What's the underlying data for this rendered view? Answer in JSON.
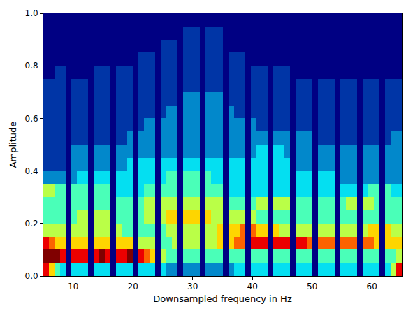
{
  "chart_data": {
    "type": "heatmap",
    "x_label": "Downsampled frequency in Hz",
    "y_label": "Amplitude",
    "color": "jet",
    "xlim": [
      5,
      65
    ],
    "ylim": [
      0,
      1
    ],
    "xticks": [
      10,
      20,
      30,
      40,
      50,
      60
    ],
    "yticks": [
      {
        "value": 0,
        "label": "0.0"
      },
      {
        "value": 0.2,
        "label": "0.2"
      },
      {
        "value": 0.4,
        "label": "0.4"
      },
      {
        "value": 0.6,
        "label": "0.6"
      },
      {
        "value": 0.8,
        "label": "0.8"
      },
      {
        "value": 1,
        "label": "1.0"
      }
    ],
    "x": [
      5.469,
      6.406,
      7.344,
      8.281,
      9.219,
      10.156,
      11.094,
      12.031,
      12.969,
      13.906,
      14.844,
      15.781,
      16.719,
      17.656,
      18.594,
      19.531,
      20.469,
      21.406,
      22.344,
      23.281,
      24.219,
      25.156,
      26.094,
      27.031,
      27.969,
      28.906,
      29.844,
      30.781,
      31.719,
      32.656,
      33.594,
      34.531,
      35.469,
      36.406,
      37.344,
      38.281,
      39.219,
      40.156,
      41.094,
      42.031,
      42.969,
      43.906,
      44.844,
      45.781,
      46.719,
      47.656,
      48.594,
      49.531,
      50.469,
      51.406,
      52.344,
      53.281,
      54.219,
      55.156,
      56.094,
      57.031,
      57.969,
      58.906,
      59.844,
      60.781,
      61.719,
      62.656,
      63.594,
      64.531
    ],
    "y": [
      0.025,
      0.075,
      0.125,
      0.175,
      0.225,
      0.275,
      0.325,
      0.375,
      0.425,
      0.475,
      0.525,
      0.575,
      0.625,
      0.675,
      0.725,
      0.775,
      0.825,
      0.875,
      0.925,
      0.975
    ],
    "z": [
      [
        8,
        6,
        4,
        3,
        0,
        3,
        3,
        3,
        0,
        3,
        3,
        3,
        0,
        3,
        3,
        3,
        0,
        3,
        3,
        3,
        0,
        3,
        2,
        2,
        0,
        2,
        2,
        2,
        0,
        2,
        2,
        2,
        0,
        2,
        3,
        3,
        0,
        3,
        3,
        3,
        0,
        3,
        3,
        3,
        0,
        3,
        3,
        3,
        0,
        3,
        3,
        3,
        0,
        3,
        3,
        3,
        0,
        3,
        3,
        3,
        0,
        3,
        5,
        8
      ],
      [
        9,
        9,
        9,
        8,
        0,
        8,
        8,
        8,
        0,
        8,
        9,
        8,
        0,
        8,
        8,
        9,
        0,
        8,
        7,
        6,
        0,
        5,
        4,
        4,
        0,
        4,
        4,
        4,
        0,
        4,
        4,
        4,
        0,
        4,
        4,
        4,
        0,
        4,
        4,
        4,
        0,
        4,
        4,
        4,
        0,
        4,
        4,
        4,
        0,
        4,
        4,
        4,
        0,
        4,
        4,
        4,
        0,
        4,
        4,
        4,
        0,
        4,
        4,
        5
      ],
      [
        8,
        7,
        6,
        6,
        0,
        6,
        6,
        6,
        0,
        6,
        6,
        6,
        0,
        6,
        6,
        6,
        0,
        5,
        5,
        5,
        0,
        4,
        4,
        5,
        0,
        5,
        5,
        5,
        0,
        5,
        5,
        6,
        0,
        6,
        7,
        7,
        0,
        8,
        8,
        8,
        0,
        8,
        8,
        8,
        0,
        8,
        8,
        7,
        0,
        7,
        7,
        7,
        0,
        7,
        7,
        7,
        0,
        7,
        7,
        6,
        0,
        6,
        6,
        6
      ],
      [
        5,
        5,
        5,
        5,
        0,
        5,
        5,
        5,
        0,
        5,
        5,
        5,
        0,
        5,
        4,
        4,
        0,
        4,
        4,
        4,
        0,
        4,
        5,
        5,
        0,
        5,
        5,
        5,
        0,
        5,
        5,
        6,
        0,
        6,
        6,
        7,
        0,
        7,
        6,
        6,
        0,
        6,
        5,
        5,
        0,
        5,
        5,
        5,
        0,
        5,
        5,
        5,
        0,
        5,
        5,
        5,
        0,
        5,
        6,
        6,
        0,
        6,
        5,
        5
      ],
      [
        4,
        4,
        4,
        4,
        0,
        4,
        5,
        5,
        0,
        5,
        5,
        5,
        0,
        4,
        4,
        4,
        0,
        4,
        5,
        5,
        0,
        5,
        6,
        6,
        0,
        6,
        6,
        6,
        0,
        6,
        5,
        5,
        0,
        5,
        5,
        5,
        0,
        5,
        4,
        4,
        0,
        4,
        4,
        4,
        0,
        4,
        4,
        4,
        0,
        4,
        4,
        4,
        0,
        4,
        4,
        4,
        0,
        4,
        4,
        4,
        0,
        4,
        4,
        4
      ],
      [
        4,
        4,
        4,
        4,
        0,
        4,
        4,
        4,
        0,
        4,
        4,
        4,
        0,
        4,
        4,
        4,
        0,
        4,
        5,
        5,
        0,
        5,
        5,
        5,
        0,
        5,
        5,
        5,
        0,
        5,
        5,
        5,
        0,
        4,
        4,
        4,
        0,
        4,
        5,
        5,
        0,
        5,
        5,
        5,
        0,
        4,
        4,
        4,
        0,
        4,
        4,
        4,
        0,
        4,
        5,
        5,
        0,
        5,
        5,
        4,
        0,
        4,
        4,
        4
      ],
      [
        5,
        5,
        4,
        4,
        0,
        4,
        4,
        4,
        0,
        4,
        4,
        4,
        0,
        3,
        3,
        3,
        0,
        3,
        4,
        4,
        0,
        4,
        4,
        4,
        0,
        4,
        4,
        4,
        0,
        4,
        4,
        4,
        0,
        3,
        3,
        3,
        0,
        3,
        3,
        3,
        0,
        3,
        3,
        3,
        0,
        3,
        3,
        3,
        0,
        3,
        3,
        3,
        0,
        3,
        3,
        3,
        0,
        3,
        4,
        4,
        0,
        4,
        3,
        3
      ],
      [
        2,
        2,
        2,
        2,
        0,
        2,
        3,
        3,
        0,
        3,
        3,
        3,
        0,
        3,
        3,
        3,
        0,
        3,
        3,
        3,
        0,
        3,
        4,
        4,
        0,
        4,
        4,
        4,
        0,
        4,
        3,
        3,
        0,
        3,
        3,
        3,
        0,
        3,
        3,
        3,
        0,
        3,
        3,
        3,
        0,
        3,
        3,
        3,
        0,
        3,
        3,
        3,
        0,
        2,
        2,
        2,
        0,
        2,
        2,
        2,
        0,
        2,
        2,
        2
      ],
      [
        1,
        1,
        1,
        1,
        0,
        2,
        2,
        2,
        0,
        2,
        2,
        2,
        0,
        2,
        2,
        3,
        0,
        3,
        3,
        3,
        0,
        3,
        3,
        3,
        0,
        3,
        3,
        3,
        0,
        3,
        3,
        3,
        0,
        3,
        3,
        3,
        0,
        3,
        3,
        3,
        0,
        3,
        3,
        3,
        0,
        2,
        2,
        2,
        0,
        2,
        2,
        2,
        0,
        2,
        2,
        2,
        0,
        2,
        2,
        2,
        0,
        2,
        2,
        2
      ],
      [
        1,
        1,
        1,
        1,
        0,
        2,
        2,
        2,
        0,
        2,
        2,
        2,
        0,
        2,
        2,
        2,
        0,
        2,
        2,
        2,
        0,
        2,
        2,
        2,
        0,
        2,
        2,
        2,
        0,
        2,
        2,
        2,
        0,
        2,
        2,
        2,
        0,
        2,
        3,
        3,
        0,
        3,
        3,
        2,
        0,
        2,
        2,
        2,
        0,
        2,
        2,
        2,
        0,
        2,
        2,
        2,
        0,
        2,
        2,
        2,
        0,
        2,
        2,
        2
      ],
      [
        1,
        1,
        1,
        1,
        0,
        1,
        1,
        1,
        0,
        1,
        1,
        1,
        0,
        1,
        1,
        2,
        0,
        2,
        2,
        2,
        0,
        2,
        2,
        2,
        0,
        2,
        2,
        2,
        0,
        2,
        2,
        2,
        0,
        2,
        2,
        2,
        0,
        2,
        2,
        2,
        0,
        2,
        2,
        2,
        0,
        2,
        2,
        2,
        0,
        1,
        1,
        1,
        0,
        1,
        1,
        1,
        0,
        1,
        1,
        1,
        0,
        1,
        2,
        2
      ],
      [
        1,
        1,
        1,
        1,
        0,
        1,
        1,
        1,
        0,
        1,
        1,
        1,
        0,
        1,
        1,
        1,
        0,
        1,
        2,
        2,
        0,
        2,
        2,
        2,
        0,
        2,
        2,
        2,
        0,
        2,
        2,
        2,
        0,
        2,
        2,
        2,
        0,
        2,
        1,
        1,
        0,
        1,
        1,
        1,
        0,
        1,
        1,
        1,
        0,
        1,
        1,
        1,
        0,
        1,
        1,
        1,
        0,
        1,
        1,
        1,
        0,
        1,
        1,
        1
      ],
      [
        1,
        1,
        1,
        1,
        0,
        1,
        1,
        1,
        0,
        1,
        1,
        1,
        0,
        1,
        1,
        1,
        0,
        1,
        1,
        1,
        0,
        1,
        2,
        2,
        0,
        2,
        2,
        2,
        0,
        2,
        2,
        2,
        0,
        2,
        1,
        1,
        0,
        1,
        1,
        1,
        0,
        1,
        1,
        1,
        0,
        1,
        1,
        1,
        0,
        1,
        1,
        1,
        0,
        1,
        1,
        1,
        0,
        1,
        1,
        1,
        0,
        1,
        1,
        1
      ],
      [
        1,
        1,
        1,
        1,
        0,
        1,
        1,
        1,
        0,
        1,
        1,
        1,
        0,
        1,
        1,
        1,
        0,
        1,
        1,
        1,
        0,
        1,
        1,
        1,
        0,
        2,
        2,
        2,
        0,
        2,
        2,
        2,
        0,
        1,
        1,
        1,
        0,
        1,
        1,
        1,
        0,
        1,
        1,
        1,
        0,
        1,
        1,
        1,
        0,
        1,
        1,
        1,
        0,
        1,
        1,
        1,
        0,
        1,
        1,
        1,
        0,
        1,
        1,
        1
      ],
      [
        1,
        1,
        1,
        1,
        0,
        1,
        1,
        1,
        0,
        1,
        1,
        1,
        0,
        1,
        1,
        1,
        0,
        1,
        1,
        1,
        0,
        1,
        1,
        1,
        0,
        1,
        1,
        1,
        0,
        1,
        1,
        1,
        0,
        1,
        1,
        1,
        0,
        1,
        1,
        1,
        0,
        1,
        1,
        1,
        0,
        1,
        1,
        1,
        0,
        1,
        1,
        1,
        0,
        1,
        1,
        1,
        0,
        1,
        1,
        1,
        0,
        1,
        1,
        1
      ],
      [
        0,
        0,
        1,
        1,
        0,
        0,
        0,
        0,
        0,
        1,
        1,
        1,
        0,
        1,
        1,
        1,
        0,
        1,
        1,
        1,
        0,
        1,
        1,
        1,
        0,
        1,
        1,
        1,
        0,
        1,
        1,
        1,
        0,
        1,
        1,
        1,
        0,
        1,
        1,
        1,
        0,
        1,
        1,
        1,
        0,
        0,
        0,
        0,
        0,
        0,
        0,
        0,
        0,
        0,
        0,
        0,
        0,
        0,
        0,
        0,
        0,
        0,
        0,
        0
      ],
      [
        0,
        0,
        0,
        0,
        0,
        0,
        0,
        0,
        0,
        0,
        0,
        0,
        0,
        0,
        0,
        0,
        0,
        1,
        1,
        1,
        0,
        1,
        1,
        1,
        0,
        1,
        1,
        1,
        0,
        1,
        1,
        1,
        0,
        1,
        1,
        1,
        0,
        0,
        0,
        0,
        0,
        0,
        0,
        0,
        0,
        0,
        0,
        0,
        0,
        0,
        0,
        0,
        0,
        0,
        0,
        0,
        0,
        0,
        0,
        0,
        0,
        0,
        0,
        0
      ],
      [
        0,
        0,
        0,
        0,
        0,
        0,
        0,
        0,
        0,
        0,
        0,
        0,
        0,
        0,
        0,
        0,
        0,
        0,
        0,
        0,
        0,
        1,
        1,
        1,
        0,
        1,
        1,
        1,
        0,
        1,
        1,
        1,
        0,
        0,
        0,
        0,
        0,
        0,
        0,
        0,
        0,
        0,
        0,
        0,
        0,
        0,
        0,
        0,
        0,
        0,
        0,
        0,
        0,
        0,
        0,
        0,
        0,
        0,
        0,
        0,
        0,
        0,
        0,
        0
      ],
      [
        0,
        0,
        0,
        0,
        0,
        0,
        0,
        0,
        0,
        0,
        0,
        0,
        0,
        0,
        0,
        0,
        0,
        0,
        0,
        0,
        0,
        0,
        0,
        0,
        0,
        1,
        1,
        1,
        0,
        1,
        1,
        1,
        0,
        0,
        0,
        0,
        0,
        0,
        0,
        0,
        0,
        0,
        0,
        0,
        0,
        0,
        0,
        0,
        0,
        0,
        0,
        0,
        0,
        0,
        0,
        0,
        0,
        0,
        0,
        0,
        0,
        0,
        0,
        0
      ],
      [
        0,
        0,
        0,
        0,
        0,
        0,
        0,
        0,
        0,
        0,
        0,
        0,
        0,
        0,
        0,
        0,
        0,
        0,
        0,
        0,
        0,
        0,
        0,
        0,
        0,
        0,
        0,
        0,
        0,
        0,
        0,
        0,
        0,
        0,
        0,
        0,
        0,
        0,
        0,
        0,
        0,
        0,
        0,
        0,
        0,
        0,
        0,
        0,
        0,
        0,
        0,
        0,
        0,
        0,
        0,
        0,
        0,
        0,
        0,
        0,
        0,
        0,
        0,
        0
      ]
    ]
  }
}
